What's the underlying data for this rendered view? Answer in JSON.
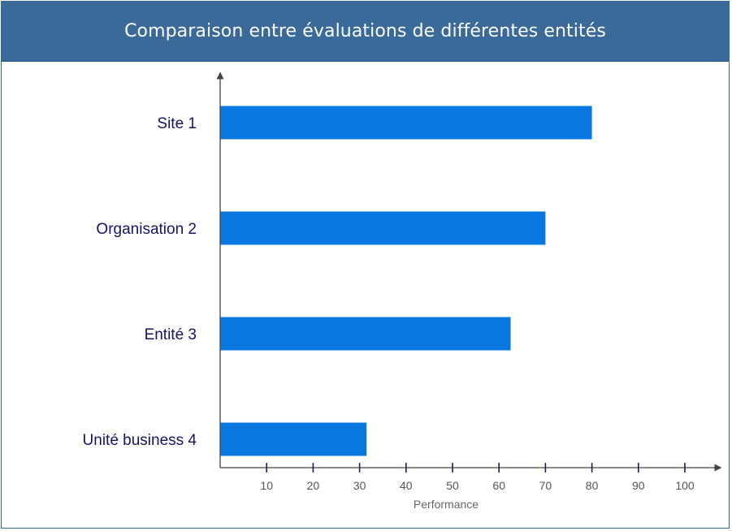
{
  "title": "Comparaison entre évaluations de différentes entités",
  "chart_data": {
    "type": "bar",
    "orientation": "horizontal",
    "categories": [
      "Site 1",
      "Organisation 2",
      "Entité 3",
      "Unité business 4"
    ],
    "values": [
      80,
      70,
      62.5,
      31.5
    ],
    "xlabel": "Performance",
    "ylabel": "",
    "xlim": [
      0,
      100
    ],
    "xticks": [
      10,
      20,
      30,
      40,
      50,
      60,
      70,
      80,
      90,
      100
    ],
    "grid": false,
    "bar_color": "#0878e0"
  }
}
